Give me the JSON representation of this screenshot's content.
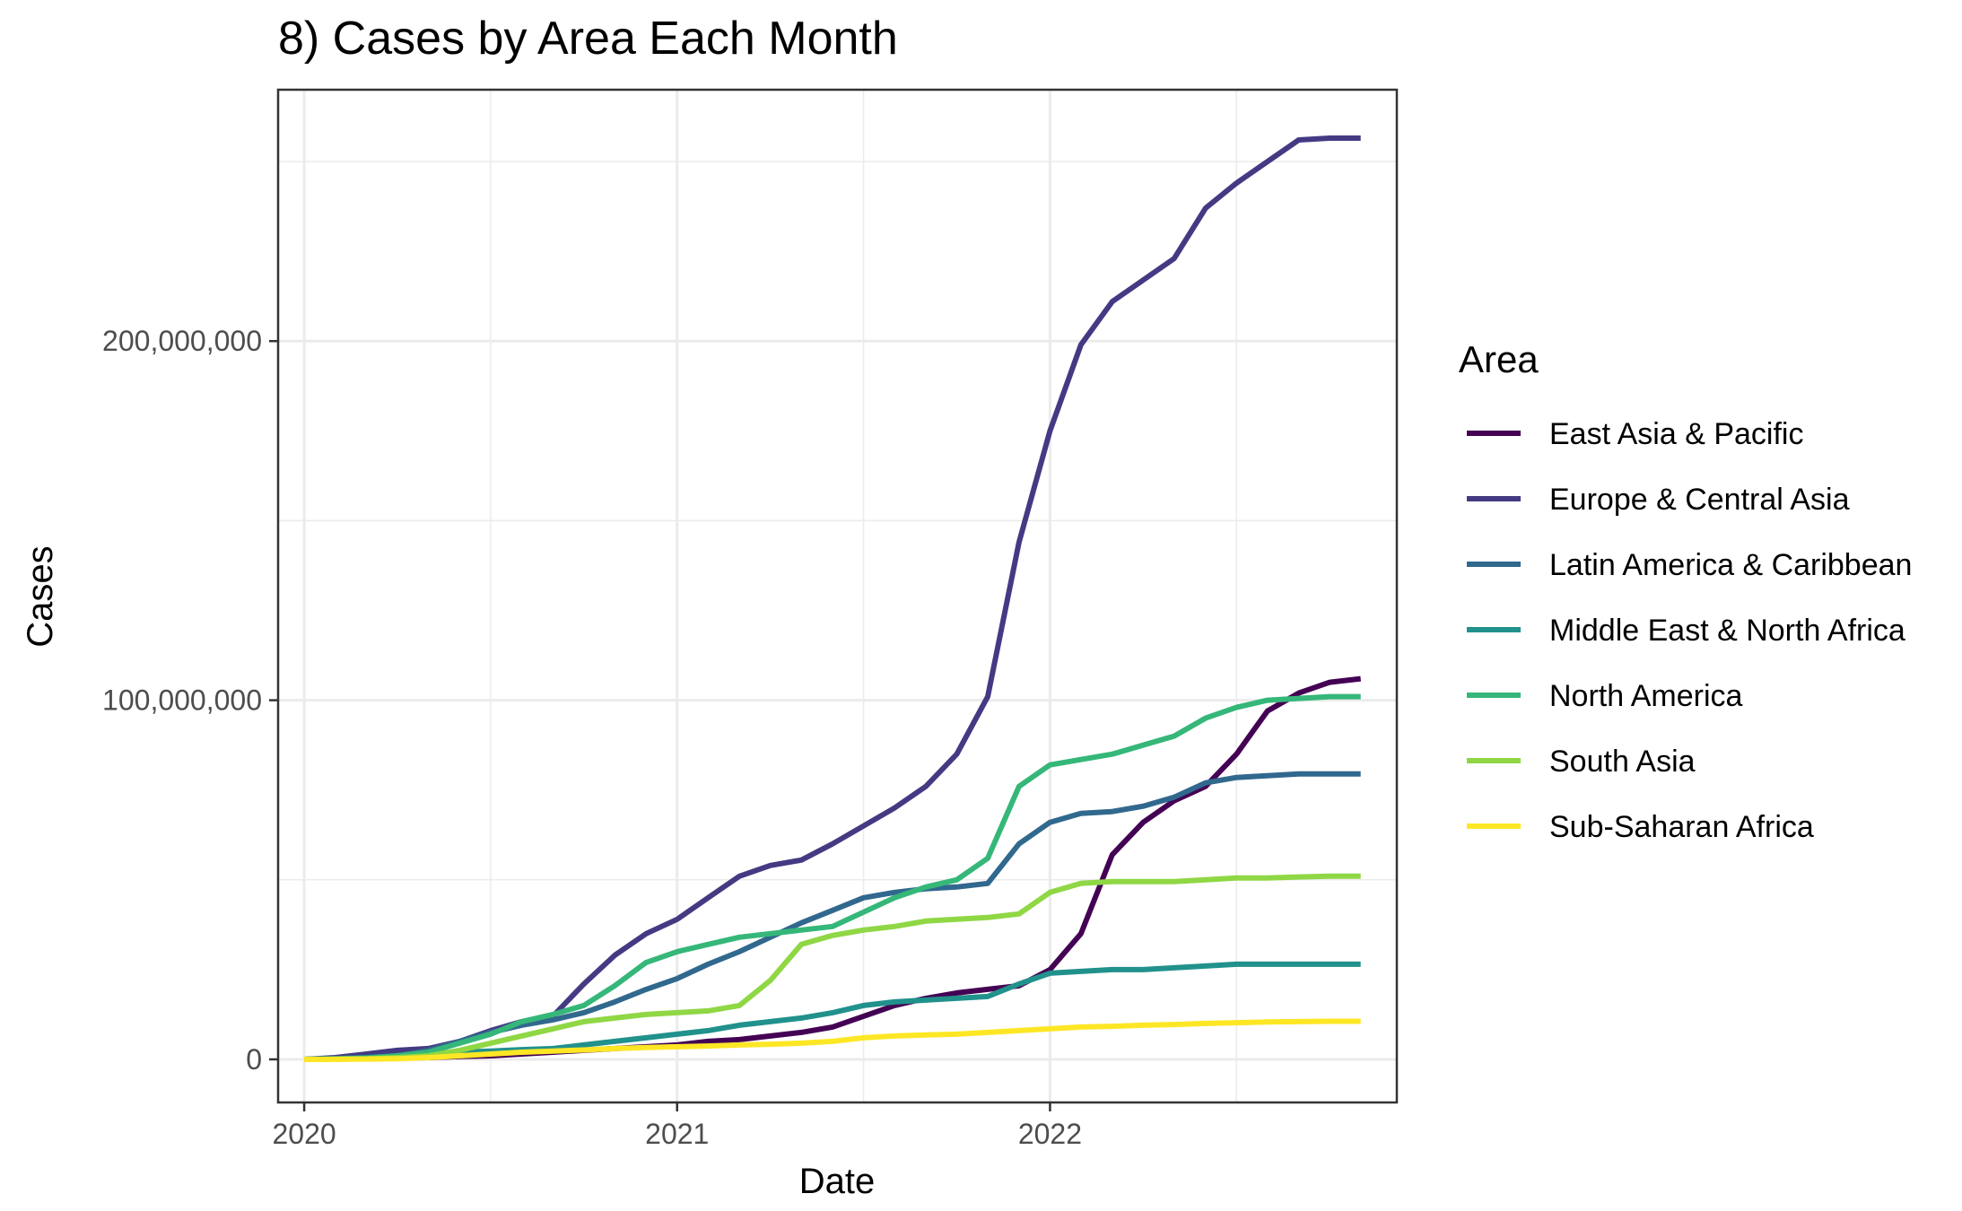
{
  "chart_data": {
    "type": "line",
    "title": "8) Cases by Area Each Month",
    "xlabel": "Date",
    "ylabel": "Cases",
    "xlim": [
      2019.93,
      2022.93
    ],
    "ylim": [
      -12000000,
      270000000
    ],
    "x_ticks": [
      2020,
      2021,
      2022
    ],
    "x_tick_labels": [
      "2020",
      "2021",
      "2022"
    ],
    "y_ticks": [
      0,
      100000000,
      200000000
    ],
    "y_tick_labels": [
      "0",
      "100,000,000",
      "200,000,000"
    ],
    "y_minor_ticks": [
      50000000,
      150000000,
      250000000
    ],
    "x_minor_ticks": [
      2020.5,
      2021.5,
      2022.5
    ],
    "grid": true,
    "legend_title": "Area",
    "legend_position": "right",
    "x": [
      2020.0,
      2020.083,
      2020.167,
      2020.25,
      2020.333,
      2020.417,
      2020.5,
      2020.583,
      2020.667,
      2020.75,
      2020.833,
      2020.917,
      2021.0,
      2021.083,
      2021.167,
      2021.25,
      2021.333,
      2021.417,
      2021.5,
      2021.583,
      2021.667,
      2021.75,
      2021.833,
      2021.917,
      2022.0,
      2022.083,
      2022.167,
      2022.25,
      2022.333,
      2022.417,
      2022.5,
      2022.583,
      2022.667,
      2022.75,
      2022.833
    ],
    "series": [
      {
        "name": "East Asia & Pacific",
        "color": "#440154",
        "values": [
          0.0,
          0.1,
          0.2,
          0.3,
          0.5,
          0.8,
          1.0,
          1.5,
          2.0,
          2.5,
          3.0,
          3.5,
          4.0,
          5.0,
          5.5,
          6.5,
          7.5,
          9.0,
          12.0,
          15.0,
          17.0,
          18.5,
          19.5,
          20.5,
          25.0,
          35.0,
          57.0,
          66.0,
          72.0,
          76.0,
          85.0,
          97.0,
          102.0,
          105.0,
          106.0
        ]
      },
      {
        "name": "Europe & Central Asia",
        "color": "#443a83",
        "values": [
          0.0,
          0.5,
          1.5,
          2.5,
          3.0,
          5.0,
          8.0,
          10.5,
          12.0,
          21.0,
          29.0,
          35.0,
          39.0,
          45.0,
          51.0,
          54.0,
          55.5,
          60.0,
          65.0,
          70.0,
          76.0,
          85.0,
          101.0,
          144.0,
          175.0,
          199.0,
          211.0,
          217.0,
          223.0,
          237.0,
          244.0,
          250.0,
          256.0,
          256.5,
          256.5
        ]
      },
      {
        "name": "Latin America & Caribbean",
        "color": "#31688e",
        "values": [
          0.0,
          0.2,
          0.5,
          1.0,
          2.5,
          5.0,
          7.5,
          9.5,
          11.0,
          13.0,
          16.0,
          19.5,
          22.5,
          26.5,
          30.0,
          34.0,
          38.0,
          41.5,
          45.0,
          46.5,
          47.5,
          48.0,
          49.0,
          60.0,
          66.0,
          68.5,
          69.0,
          70.5,
          73.0,
          77.0,
          78.5,
          79.0,
          79.5,
          79.5,
          79.5
        ]
      },
      {
        "name": "Middle East & North Africa",
        "color": "#21918c",
        "values": [
          0.0,
          0.2,
          0.5,
          1.0,
          1.5,
          2.0,
          2.3,
          2.7,
          3.0,
          4.0,
          5.0,
          6.0,
          7.0,
          8.0,
          9.5,
          10.5,
          11.5,
          13.0,
          15.0,
          16.0,
          16.5,
          17.0,
          17.5,
          21.0,
          24.0,
          24.5,
          25.0,
          25.0,
          25.5,
          26.0,
          26.5,
          26.5,
          26.5,
          26.5,
          26.5
        ]
      },
      {
        "name": "North America",
        "color": "#35b779",
        "values": [
          0.0,
          0.1,
          0.3,
          1.0,
          2.0,
          4.5,
          7.0,
          10.5,
          12.5,
          15.0,
          20.5,
          27.0,
          30.0,
          32.0,
          34.0,
          35.0,
          36.0,
          37.0,
          41.0,
          45.0,
          48.0,
          50.0,
          56.0,
          76.0,
          82.0,
          83.5,
          85.0,
          87.5,
          90.0,
          95.0,
          98.0,
          100.0,
          100.5,
          101.0,
          101.0
        ]
      },
      {
        "name": "South Asia",
        "color": "#8fd744",
        "values": [
          0.0,
          0.1,
          0.2,
          0.5,
          1.0,
          2.5,
          4.5,
          6.5,
          8.5,
          10.5,
          11.5,
          12.5,
          13.0,
          13.5,
          15.0,
          22.0,
          32.0,
          34.5,
          36.0,
          37.0,
          38.5,
          39.0,
          39.5,
          40.5,
          46.5,
          49.0,
          49.5,
          49.5,
          49.5,
          50.0,
          50.5,
          50.5,
          50.8,
          51.0,
          51.0
        ]
      },
      {
        "name": "Sub-Saharan Africa",
        "color": "#fde725",
        "values": [
          0.0,
          0.0,
          0.1,
          0.2,
          0.5,
          1.0,
          1.5,
          2.0,
          2.3,
          2.6,
          3.0,
          3.3,
          3.5,
          3.7,
          4.0,
          4.2,
          4.5,
          5.0,
          6.0,
          6.5,
          6.8,
          7.0,
          7.5,
          8.0,
          8.5,
          9.0,
          9.2,
          9.5,
          9.7,
          10.0,
          10.2,
          10.4,
          10.5,
          10.6,
          10.6
        ]
      }
    ],
    "values_unit": "millions"
  }
}
